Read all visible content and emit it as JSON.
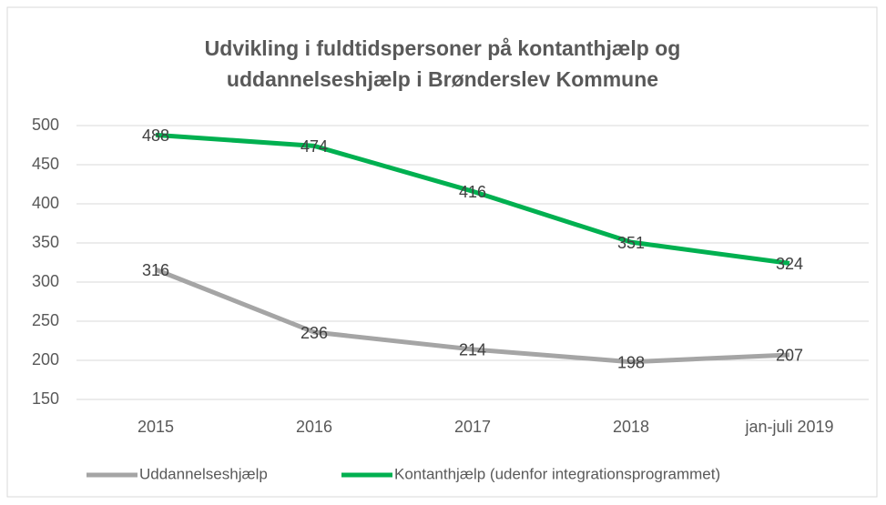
{
  "chart_data": {
    "type": "line",
    "title": [
      "Udvikling i fuldtidspersoner på kontanthjælp og",
      "uddannelseshjælp i Brønderslev Kommune"
    ],
    "categories": [
      "2015",
      "2016",
      "2017",
      "2018",
      "jan-juli 2019"
    ],
    "series": [
      {
        "name": "Uddannelseshjælp",
        "color": "#a5a5a5",
        "values": [
          316,
          236,
          214,
          198,
          207
        ]
      },
      {
        "name": "Kontanthjælp (udenfor integrationsprogrammet)",
        "color": "#00b050",
        "values": [
          488,
          474,
          416,
          351,
          324
        ]
      }
    ],
    "ylim": [
      150,
      500
    ],
    "yticks": [
      150,
      200,
      250,
      300,
      350,
      400,
      450,
      500
    ],
    "grid": true,
    "legend": "bottom"
  }
}
